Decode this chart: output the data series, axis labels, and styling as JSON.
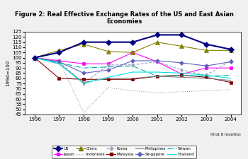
{
  "title": "Figure 2: Real Effective Exchange Rates of the US and East Asian\nEconomies",
  "ylabel": "1994=100",
  "xlabel_note": "(first 8 months)",
  "years": [
    1996,
    1997,
    1998,
    1999,
    2000,
    2001,
    2002,
    2003,
    2004
  ],
  "ylim": [
    45,
    125
  ],
  "yticks": [
    45,
    50,
    55,
    60,
    65,
    70,
    75,
    80,
    85,
    90,
    95,
    100,
    105,
    110,
    115,
    120,
    125
  ],
  "series": {
    "US": [
      100,
      105,
      115,
      115,
      115,
      122,
      122,
      113,
      108
    ],
    "Japan": [
      100,
      97,
      94,
      94,
      105,
      96,
      84,
      90,
      90
    ],
    "China": [
      100,
      107,
      113,
      106,
      105,
      115,
      111,
      107,
      107
    ],
    "Indonesia": [
      100,
      97,
      47,
      71,
      68,
      66,
      67,
      68,
      69
    ],
    "Korea": [
      100,
      96,
      75,
      93,
      93,
      96,
      88,
      83,
      97
    ],
    "Malaysia": [
      100,
      80,
      79,
      79,
      79,
      82,
      83,
      81,
      76
    ],
    "Philippines": [
      100,
      94,
      76,
      80,
      80,
      82,
      81,
      80,
      78
    ],
    "Singapore": [
      100,
      96,
      85,
      88,
      97,
      97,
      95,
      92,
      96
    ],
    "Taiwan": [
      100,
      95,
      90,
      91,
      92,
      82,
      83,
      82,
      83
    ],
    "Thailand": [
      100,
      94,
      75,
      81,
      86,
      86,
      85,
      83,
      80
    ]
  },
  "colors": {
    "US": "#000080",
    "Japan": "#FF00FF",
    "China": "#808000",
    "Indonesia": "#A0A0A0",
    "Korea": "#A0A0C0",
    "Malaysia": "#800000",
    "Philippines": "#808080",
    "Singapore": "#6060C0",
    "Taiwan": "#00B0B0",
    "Thailand": "#00E0E0"
  },
  "markers": {
    "US": "D",
    "Japan": "s",
    "China": "^",
    "Indonesia": ".",
    "Korea": "d",
    "Malaysia": "s",
    "Philippines": ".",
    "Singapore": "D",
    "Taiwan": ".",
    "Thailand": "."
  },
  "linestyles": {
    "US": "-",
    "Japan": "-",
    "China": "-",
    "Indonesia": ":",
    "Korea": "--",
    "Malaysia": "-",
    "Philippines": "-",
    "Singapore": "-",
    "Taiwan": "-.",
    "Thailand": "-"
  },
  "linewidths": {
    "US": 1.5,
    "Japan": 0.8,
    "China": 0.8,
    "Indonesia": 0.8,
    "Korea": 0.8,
    "Malaysia": 0.8,
    "Philippines": 0.8,
    "Singapore": 0.8,
    "Taiwan": 0.8,
    "Thailand": 0.8
  },
  "markersizes": {
    "US": 4,
    "Japan": 3,
    "China": 4,
    "Indonesia": 0,
    "Korea": 3,
    "Malaysia": 3,
    "Philippines": 0,
    "Singapore": 3,
    "Taiwan": 0,
    "Thailand": 0
  },
  "legend_order": [
    "US",
    "Japan",
    "China",
    "Indonesia",
    "Korea",
    "Malaysia",
    "Philippines",
    "Singapore",
    "Taiwan",
    "Thailand"
  ]
}
